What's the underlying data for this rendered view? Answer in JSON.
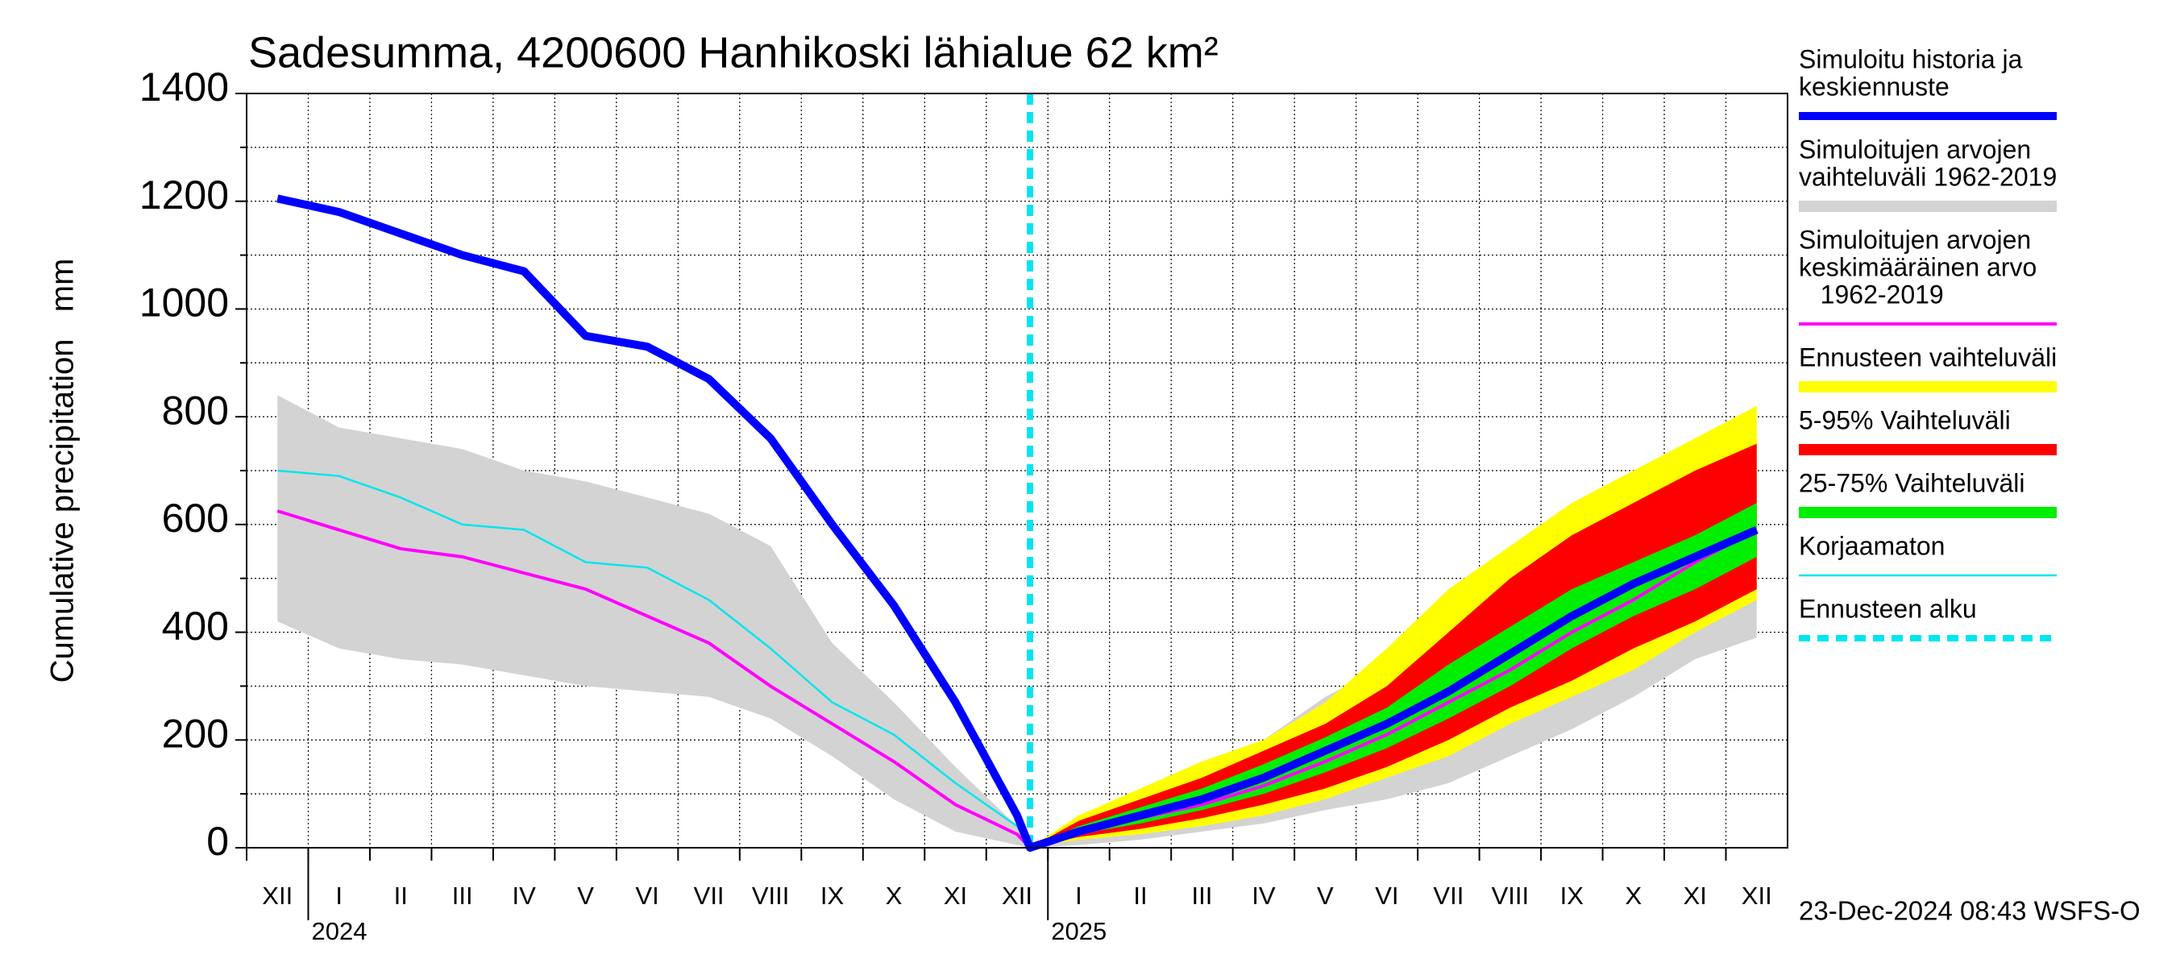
{
  "chart_data": {
    "type": "line",
    "title": "Sadesumma, 4200600 Hanhikoski lähialue 62 km²",
    "y_label": "Cumulative precipitation   mm",
    "footer": "23-Dec-2024 08:43 WSFS-O",
    "xlim": [
      "2023-12",
      "2025-12"
    ],
    "month_labels": [
      "XII",
      "I",
      "II",
      "III",
      "IV",
      "V",
      "VI",
      "VII",
      "VIII",
      "IX",
      "X",
      "XI",
      "XII",
      "I",
      "II",
      "III",
      "IV",
      "V",
      "VI",
      "VII",
      "VIII",
      "IX",
      "X",
      "XI",
      "XII"
    ],
    "xticks": [
      {
        "value": "2024-01-01",
        "label": "2024"
      },
      {
        "value": "2025-01-01",
        "label": "2025"
      }
    ],
    "ylim": [
      0,
      1400
    ],
    "yticks": [
      0,
      200,
      400,
      600,
      800,
      1000,
      1200,
      1400
    ],
    "minor_yticks": [
      100,
      300,
      500,
      700,
      900,
      1100,
      1300
    ],
    "grid": true,
    "x": [
      "2023-12",
      "2024-01",
      "2024-02",
      "2024-03",
      "2024-04",
      "2024-05",
      "2024-06",
      "2024-07",
      "2024-08",
      "2024-09",
      "2024-10",
      "2024-11",
      "2024-12",
      "2024-12-23",
      "2025-01",
      "2025-02",
      "2025-03",
      "2025-04",
      "2025-05",
      "2025-06",
      "2025-07",
      "2025-08",
      "2025-09",
      "2025-10",
      "2025-11",
      "2025-12"
    ],
    "series": [
      {
        "name": [
          "Simuloitu historia ja",
          "keskiennuste"
        ],
        "color": "#0000ff",
        "style": "thick",
        "values": [
          1205,
          1180,
          1140,
          1100,
          1070,
          950,
          930,
          870,
          760,
          600,
          450,
          270,
          60,
          0,
          30,
          60,
          90,
          130,
          180,
          230,
          290,
          360,
          430,
          490,
          540,
          590
        ]
      },
      {
        "name": [
          "Simuloitujen arvojen",
          "vaihteluväli 1962-2019"
        ],
        "color": "#d3d3d3",
        "style": "band",
        "low": [
          420,
          370,
          350,
          340,
          320,
          300,
          290,
          280,
          240,
          170,
          90,
          30,
          5,
          0,
          5,
          15,
          30,
          45,
          70,
          90,
          120,
          170,
          220,
          280,
          350,
          390
        ],
        "high": [
          840,
          780,
          760,
          740,
          700,
          680,
          650,
          620,
          560,
          380,
          270,
          150,
          40,
          0,
          50,
          110,
          160,
          200,
          280,
          340,
          420,
          520,
          600,
          660,
          730,
          800
        ]
      },
      {
        "name": [
          "Simuloitujen arvojen",
          "keskimääräinen arvo",
          "   1962-2019"
        ],
        "color": "#ff00ff",
        "style": "medium",
        "values": [
          625,
          590,
          555,
          540,
          510,
          480,
          430,
          380,
          300,
          230,
          160,
          80,
          25,
          0,
          25,
          55,
          80,
          115,
          160,
          210,
          270,
          330,
          400,
          460,
          530,
          590
        ]
      },
      {
        "name": [
          "Ennusteen vaihteluväli"
        ],
        "color": "#ffff00",
        "style": "band",
        "low": [
          null,
          null,
          null,
          null,
          null,
          null,
          null,
          null,
          null,
          null,
          null,
          null,
          null,
          0,
          15,
          25,
          40,
          60,
          90,
          130,
          170,
          230,
          280,
          330,
          400,
          460
        ],
        "high": [
          null,
          null,
          null,
          null,
          null,
          null,
          null,
          null,
          null,
          null,
          null,
          null,
          null,
          0,
          60,
          110,
          160,
          200,
          270,
          370,
          480,
          560,
          640,
          700,
          760,
          820
        ]
      },
      {
        "name": [
          "5-95% Vaihteluväli"
        ],
        "color": "#ff0000",
        "style": "band",
        "low": [
          null,
          null,
          null,
          null,
          null,
          null,
          null,
          null,
          null,
          null,
          null,
          null,
          null,
          0,
          20,
          35,
          55,
          80,
          110,
          150,
          200,
          260,
          310,
          370,
          420,
          480
        ],
        "high": [
          null,
          null,
          null,
          null,
          null,
          null,
          null,
          null,
          null,
          null,
          null,
          null,
          null,
          0,
          50,
          90,
          130,
          180,
          230,
          300,
          400,
          500,
          580,
          640,
          700,
          750
        ]
      },
      {
        "name": [
          "25-75% Vaihteluväli"
        ],
        "color": "#00ee00",
        "style": "band",
        "low": [
          null,
          null,
          null,
          null,
          null,
          null,
          null,
          null,
          null,
          null,
          null,
          null,
          null,
          0,
          25,
          45,
          70,
          100,
          140,
          185,
          240,
          300,
          370,
          430,
          480,
          540
        ],
        "high": [
          null,
          null,
          null,
          null,
          null,
          null,
          null,
          null,
          null,
          null,
          null,
          null,
          null,
          0,
          40,
          75,
          110,
          155,
          205,
          260,
          340,
          410,
          480,
          530,
          580,
          640
        ]
      },
      {
        "name": [
          "Korjaamaton"
        ],
        "color": "#00e5ee",
        "style": "thin",
        "values": [
          700,
          690,
          650,
          600,
          590,
          530,
          520,
          460,
          370,
          270,
          210,
          120,
          40,
          0,
          null,
          null,
          null,
          null,
          null,
          null,
          null,
          null,
          null,
          null,
          null,
          null
        ]
      },
      {
        "name": [
          "Ennusteen alku"
        ],
        "color": "#00e5ee",
        "style": "dashed",
        "x": "2024-12-23"
      }
    ]
  }
}
